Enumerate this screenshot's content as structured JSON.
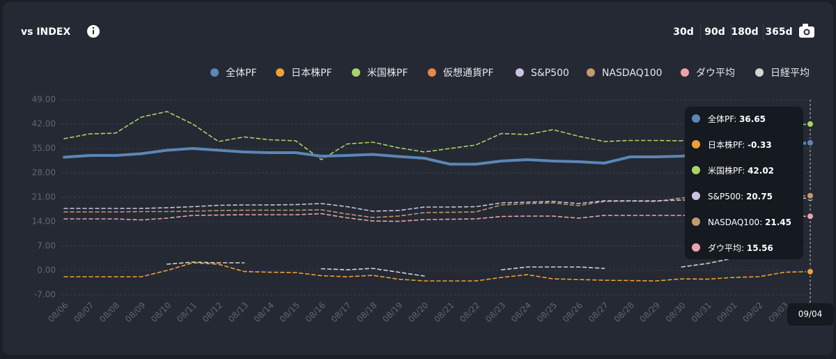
{
  "chart_data": {
    "type": "line",
    "title": "vs INDEX",
    "range_buttons": [
      "30d",
      "90d",
      "180d",
      "365d"
    ],
    "categories": [
      "08/06",
      "08/07",
      "08/08",
      "08/09",
      "08/10",
      "08/11",
      "08/12",
      "08/13",
      "08/14",
      "08/15",
      "08/16",
      "08/17",
      "08/18",
      "08/19",
      "08/20",
      "08/21",
      "08/22",
      "08/23",
      "08/24",
      "08/25",
      "08/26",
      "08/27",
      "08/28",
      "08/29",
      "08/30",
      "08/31",
      "09/01",
      "09/02",
      "09/03",
      "09/04"
    ],
    "ylim": [
      -7,
      49
    ],
    "yticks": [
      {
        "value": -7,
        "label": "-7.00"
      },
      {
        "value": 0,
        "label": "0.00"
      },
      {
        "value": 7,
        "label": "7.00"
      },
      {
        "value": 14,
        "label": "14.00"
      },
      {
        "value": 21,
        "label": "21.00"
      },
      {
        "value": 28,
        "label": "28.00"
      },
      {
        "value": 35,
        "label": "35.00"
      },
      {
        "value": 42,
        "label": "42.00"
      },
      {
        "value": 49,
        "label": "49.00"
      }
    ],
    "grid": true,
    "series": [
      {
        "name": "全体PF",
        "color": "#5b86b5",
        "line_style": "solid",
        "values": [
          32.5,
          33,
          33,
          33.5,
          34.5,
          35,
          34.5,
          34,
          33.8,
          33.8,
          32.8,
          33,
          33.3,
          32.7,
          32.2,
          30.5,
          30.5,
          31.4,
          31.8,
          31.4,
          31.2,
          30.8,
          32.6,
          32.6,
          32.8,
          33.5,
          34.5,
          35.5,
          36,
          36.65
        ]
      },
      {
        "name": "日本株PF",
        "color": "#f0a035",
        "line_style": "dashed",
        "values": [
          -1.8,
          -1.8,
          -1.8,
          -1.8,
          0,
          2.2,
          1.8,
          -0.3,
          -0.5,
          -0.6,
          -1.5,
          -1.8,
          -1.4,
          -2.5,
          -3,
          -3,
          -3,
          -2,
          -1.2,
          -2.4,
          -2.6,
          -2.8,
          -2.9,
          -3,
          -2.4,
          -2.5,
          -2,
          -1.8,
          -0.5,
          -0.33
        ]
      },
      {
        "name": "米国株PF",
        "color": "#a9d468",
        "line_style": "dashed",
        "values": [
          37.8,
          39.2,
          39.4,
          44,
          45.6,
          42,
          37,
          38.3,
          37.5,
          37.2,
          31.8,
          36.3,
          36.8,
          35.2,
          34,
          35,
          36,
          39.3,
          39,
          40.4,
          38.5,
          37,
          37.3,
          37.3,
          37.2,
          38,
          39,
          40.5,
          41.5,
          42.02
        ]
      },
      {
        "name": "仮想通貨PF",
        "color": "#e8874a",
        "line_style": "dashed",
        "values": [
          null,
          null,
          null,
          null,
          null,
          null,
          null,
          null,
          null,
          null,
          null,
          null,
          null,
          null,
          null,
          null,
          null,
          null,
          null,
          null,
          null,
          null,
          null,
          null,
          null,
          null,
          null,
          null,
          null,
          null
        ]
      },
      {
        "name": "S&P500",
        "color": "#c9c2e4",
        "line_style": "dashed",
        "values": [
          17.8,
          17.8,
          17.8,
          17.8,
          18,
          18.3,
          18.7,
          18.8,
          18.8,
          18.9,
          19.2,
          18.3,
          17,
          17.2,
          18.2,
          18.2,
          18.3,
          19.4,
          19.6,
          19.8,
          19.2,
          20,
          20,
          20,
          20.2,
          20.4,
          20.5,
          20.6,
          20.7,
          20.75
        ]
      },
      {
        "name": "NASDAQ100",
        "color": "#c49a6c",
        "line_style": "dashed",
        "values": [
          16.8,
          16.8,
          16.8,
          16.9,
          16.9,
          17,
          17.2,
          17.3,
          17.3,
          17.3,
          17.4,
          16.2,
          15.2,
          15.6,
          16.6,
          16.7,
          16.8,
          18.8,
          19.2,
          19.4,
          18.6,
          19.8,
          19.9,
          19.8,
          20.8,
          21,
          21.1,
          21.2,
          21.3,
          21.45
        ]
      },
      {
        "name": "ダウ平均",
        "color": "#eba3ab",
        "line_style": "dashed",
        "values": [
          14.8,
          14.8,
          14.8,
          14.5,
          15,
          15.8,
          15.9,
          16,
          16,
          16,
          16.3,
          15.1,
          14.2,
          14.1,
          14.6,
          14.7,
          14.8,
          15.5,
          15.6,
          15.6,
          15,
          15.8,
          15.8,
          15.8,
          15.8,
          15.9,
          15.8,
          15.7,
          15.6,
          15.56
        ]
      },
      {
        "name": "日経平均",
        "color": "#d4d4d4",
        "line_style": "dashed",
        "values": [
          null,
          null,
          null,
          null,
          1.8,
          2.4,
          2.2,
          2.2,
          null,
          null,
          0.5,
          0.2,
          0.6,
          -0.5,
          -1.6,
          null,
          null,
          0.2,
          1,
          1,
          1,
          0.6,
          null,
          null,
          1,
          2,
          3.5,
          null,
          null,
          null
        ]
      }
    ]
  }
}
